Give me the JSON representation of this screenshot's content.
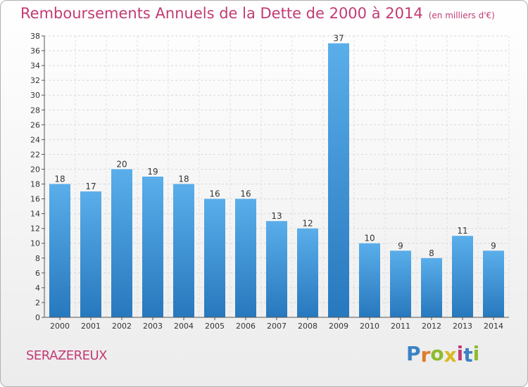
{
  "header": {
    "title": "Remboursements Annuels de la Dette de 2000 à 2014",
    "unit": "(en milliers d'€)"
  },
  "footer": {
    "commune": "SERAZEREUX",
    "logo": "Proxiti"
  },
  "colors": {
    "title": "#c23b73",
    "bar_top": "#5aaeea",
    "bar_bottom": "#2778bd",
    "logo_letters": [
      "#3a82c4",
      "#e07a2c",
      "#8dbb2e",
      "#d9ba1f",
      "#c23b73",
      "#3a82c4",
      "#8dbb2e"
    ]
  },
  "chart_data": {
    "type": "bar",
    "categories": [
      "2000",
      "2001",
      "2002",
      "2003",
      "2004",
      "2005",
      "2006",
      "2007",
      "2008",
      "2009",
      "2010",
      "2011",
      "2012",
      "2013",
      "2014"
    ],
    "values": [
      18,
      17,
      20,
      19,
      18,
      16,
      16,
      13,
      12,
      37,
      10,
      9,
      8,
      11,
      9
    ],
    "title": "Remboursements Annuels de la Dette de 2000 à 2014",
    "xlabel": "",
    "ylabel": "",
    "ylim": [
      0,
      38
    ],
    "yticks": [
      0,
      2,
      4,
      6,
      8,
      10,
      12,
      14,
      16,
      18,
      20,
      22,
      24,
      26,
      28,
      30,
      32,
      34,
      36,
      38
    ],
    "grid": true,
    "data_labels": true
  }
}
